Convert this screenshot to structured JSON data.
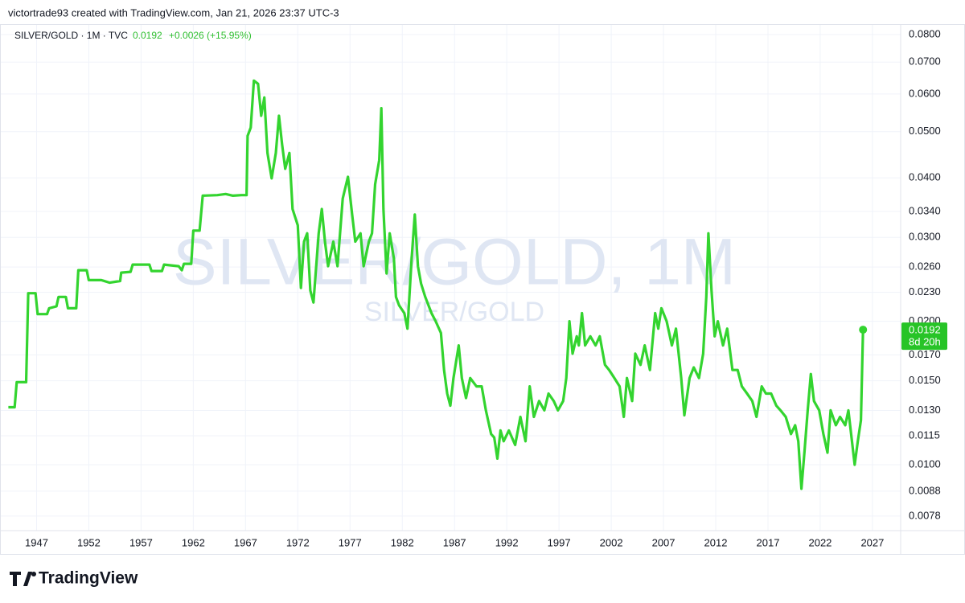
{
  "header": {
    "attribution": "victortrade93 created with TradingView.com, Jan 21, 2026 23:37 UTC-3",
    "symbol": "SILVER/GOLD · 1M · TVC",
    "last": 0.0192,
    "change": "+0.0026 (+15.95%)"
  },
  "watermark": {
    "main": "SILVER/GOLD, 1M",
    "sub": "SILVER/GOLD"
  },
  "footer": {
    "logo": "TradingView"
  },
  "chart_data": {
    "type": "line",
    "log_scale": true,
    "grid": true,
    "x": [
      1944.3,
      1944.9,
      1945.1,
      1946.0,
      1946.2,
      1946.9,
      1947.1,
      1948.0,
      1948.2,
      1948.9,
      1949.1,
      1949.8,
      1950.0,
      1950.8,
      1951.0,
      1951.8,
      1952.0,
      1953.2,
      1954.0,
      1955.0,
      1955.1,
      1956.0,
      1956.2,
      1957.8,
      1958.0,
      1959.0,
      1959.2,
      1960.6,
      1960.9,
      1961.1,
      1961.8,
      1962.0,
      1962.6,
      1962.9,
      1964.3,
      1965.1,
      1965.8,
      1966.6,
      1967.1,
      1967.2,
      1967.5,
      1967.8,
      1968.2,
      1968.5,
      1968.8,
      1969.1,
      1969.5,
      1969.9,
      1970.2,
      1970.5,
      1970.8,
      1971.2,
      1971.5,
      1972.0,
      1972.3,
      1972.6,
      1972.9,
      1973.2,
      1973.5,
      1974.0,
      1974.3,
      1974.6,
      1974.9,
      1975.4,
      1975.8,
      1976.3,
      1976.8,
      1977.2,
      1977.5,
      1978.0,
      1978.3,
      1978.8,
      1979.1,
      1979.4,
      1979.8,
      1980.0,
      1980.2,
      1980.5,
      1980.8,
      1981.2,
      1981.4,
      1981.7,
      1982.2,
      1982.5,
      1982.9,
      1983.2,
      1983.5,
      1983.8,
      1984.2,
      1984.8,
      1985.2,
      1985.7,
      1986.0,
      1986.3,
      1986.6,
      1986.9,
      1987.4,
      1987.7,
      1988.1,
      1988.5,
      1989.1,
      1989.6,
      1990.0,
      1990.5,
      1990.8,
      1991.1,
      1991.4,
      1991.7,
      1992.2,
      1992.8,
      1993.3,
      1993.8,
      1994.2,
      1994.6,
      1995.1,
      1995.6,
      1996.0,
      1996.5,
      1996.9,
      1997.4,
      1997.7,
      1998.0,
      1998.3,
      1998.7,
      1998.9,
      1999.2,
      1999.5,
      2000.0,
      2000.5,
      2000.9,
      2001.4,
      2001.8,
      2002.3,
      2002.8,
      2003.2,
      2003.5,
      2004.0,
      2004.3,
      2004.8,
      2005.2,
      2005.7,
      2006.2,
      2006.5,
      2006.8,
      2007.3,
      2007.8,
      2008.2,
      2008.7,
      2009.0,
      2009.5,
      2009.9,
      2010.4,
      2010.8,
      2011.1,
      2011.3,
      2011.6,
      2011.9,
      2012.2,
      2012.7,
      2013.1,
      2013.6,
      2014.1,
      2014.5,
      2015.0,
      2015.5,
      2015.9,
      2016.4,
      2016.8,
      2017.3,
      2017.8,
      2018.2,
      2018.7,
      2019.2,
      2019.6,
      2019.9,
      2020.2,
      2020.5,
      2020.8,
      2021.1,
      2021.4,
      2021.9,
      2022.3,
      2022.7,
      2023.0,
      2023.5,
      2023.9,
      2024.4,
      2024.7,
      2025.0,
      2025.3,
      2025.6,
      2025.9,
      2026.1
    ],
    "series": [
      {
        "name": "SILVER/GOLD",
        "color": "#33d42f",
        "values": [
          0.0132,
          0.0132,
          0.0149,
          0.0149,
          0.0229,
          0.0229,
          0.0207,
          0.0207,
          0.0213,
          0.0215,
          0.0225,
          0.0225,
          0.0213,
          0.0213,
          0.0256,
          0.0256,
          0.0244,
          0.0244,
          0.0241,
          0.0243,
          0.0253,
          0.0254,
          0.0263,
          0.0263,
          0.0255,
          0.0255,
          0.0263,
          0.0261,
          0.0256,
          0.0264,
          0.0264,
          0.031,
          0.031,
          0.0367,
          0.0368,
          0.037,
          0.0367,
          0.0368,
          0.0368,
          0.049,
          0.051,
          0.064,
          0.063,
          0.054,
          0.059,
          0.0451,
          0.0399,
          0.0451,
          0.054,
          0.047,
          0.0418,
          0.0451,
          0.0344,
          0.0318,
          0.0235,
          0.0294,
          0.0306,
          0.0232,
          0.0219,
          0.0306,
          0.0344,
          0.0294,
          0.0261,
          0.0294,
          0.0261,
          0.0362,
          0.0402,
          0.0335,
          0.0294,
          0.0306,
          0.0261,
          0.0294,
          0.0306,
          0.0388,
          0.0436,
          0.056,
          0.0344,
          0.0252,
          0.0306,
          0.0271,
          0.0225,
          0.0216,
          0.0208,
          0.0193,
          0.0271,
          0.0335,
          0.0261,
          0.024,
          0.0225,
          0.0208,
          0.02,
          0.0189,
          0.0158,
          0.0141,
          0.0133,
          0.0152,
          0.0178,
          0.0152,
          0.0138,
          0.0152,
          0.0146,
          0.0146,
          0.013,
          0.0116,
          0.0114,
          0.0103,
          0.0118,
          0.0112,
          0.0118,
          0.011,
          0.0126,
          0.0112,
          0.0146,
          0.0126,
          0.0136,
          0.013,
          0.0141,
          0.0136,
          0.013,
          0.0136,
          0.0152,
          0.02,
          0.0171,
          0.0186,
          0.0178,
          0.0208,
          0.0178,
          0.0186,
          0.0178,
          0.0186,
          0.0162,
          0.0158,
          0.0152,
          0.0146,
          0.0126,
          0.0152,
          0.0136,
          0.0171,
          0.0162,
          0.0178,
          0.0158,
          0.0208,
          0.0193,
          0.0213,
          0.02,
          0.0178,
          0.0193,
          0.0152,
          0.0127,
          0.0152,
          0.016,
          0.0152,
          0.0171,
          0.0225,
          0.0306,
          0.0232,
          0.0186,
          0.02,
          0.0178,
          0.0193,
          0.0158,
          0.0158,
          0.0146,
          0.0141,
          0.0136,
          0.0126,
          0.0146,
          0.0141,
          0.0141,
          0.0133,
          0.013,
          0.0126,
          0.0116,
          0.0121,
          0.0112,
          0.0089,
          0.0107,
          0.013,
          0.0155,
          0.0136,
          0.013,
          0.0116,
          0.0106,
          0.013,
          0.0121,
          0.0126,
          0.0121,
          0.013,
          0.0114,
          0.01,
          0.0112,
          0.0124,
          0.0192
        ]
      }
    ],
    "xlim": [
      1943.5,
      2029.7
    ],
    "xticks": [
      1947,
      1952,
      1957,
      1962,
      1967,
      1972,
      1977,
      1982,
      1987,
      1992,
      1997,
      2002,
      2007,
      2012,
      2017,
      2022,
      2027
    ],
    "ylim": [
      0.00727,
      0.0841
    ],
    "yticks": [
      {
        "value": 0.08,
        "label": "0.0800"
      },
      {
        "value": 0.07,
        "label": "0.0700"
      },
      {
        "value": 0.06,
        "label": "0.0600"
      },
      {
        "value": 0.05,
        "label": "0.0500"
      },
      {
        "value": 0.04,
        "label": "0.0400"
      },
      {
        "value": 0.034,
        "label": "0.0340"
      },
      {
        "value": 0.03,
        "label": "0.0300"
      },
      {
        "value": 0.026,
        "label": "0.0260"
      },
      {
        "value": 0.023,
        "label": "0.0230"
      },
      {
        "value": 0.02,
        "label": "0.0200"
      },
      {
        "value": 0.017,
        "label": "0.0170"
      },
      {
        "value": 0.015,
        "label": "0.0150"
      },
      {
        "value": 0.013,
        "label": "0.0130"
      },
      {
        "value": 0.0115,
        "label": "0.0115"
      },
      {
        "value": 0.01,
        "label": "0.0100"
      },
      {
        "value": 0.0088,
        "label": "0.0088"
      },
      {
        "value": 0.0078,
        "label": "0.0078"
      }
    ],
    "price_label": {
      "value": 0.0192,
      "countdown": "8d 20h",
      "color": "#27c427"
    }
  }
}
